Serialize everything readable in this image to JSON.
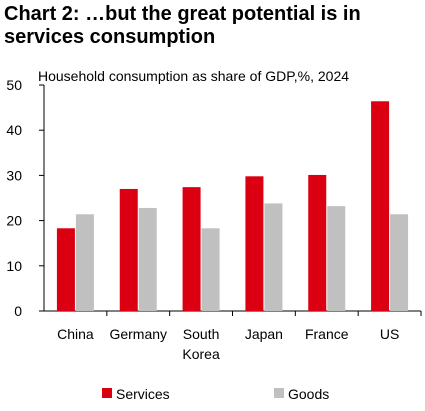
{
  "title": "Chart 2: …but the great potential is in services consumption",
  "chart_data": {
    "type": "bar",
    "subtitle": "Household consumption  as share of GDP,%, 2024",
    "categories": [
      [
        "China"
      ],
      [
        "Germany"
      ],
      [
        "South",
        "Korea"
      ],
      [
        "Japan"
      ],
      [
        "France"
      ],
      [
        "US"
      ]
    ],
    "series": [
      {
        "name": "Services",
        "color": "#db0011",
        "values": [
          18.3,
          27.0,
          27.4,
          29.8,
          30.1,
          46.4
        ]
      },
      {
        "name": "Goods",
        "color": "#c0c0c0",
        "values": [
          21.4,
          22.8,
          18.3,
          23.8,
          23.2,
          21.4
        ]
      }
    ],
    "ylim": [
      0,
      50
    ],
    "yticks": [
      0,
      10,
      20,
      30,
      40,
      50
    ],
    "xlabel": "",
    "ylabel": "",
    "grid": false,
    "legend_position": "bottom"
  }
}
